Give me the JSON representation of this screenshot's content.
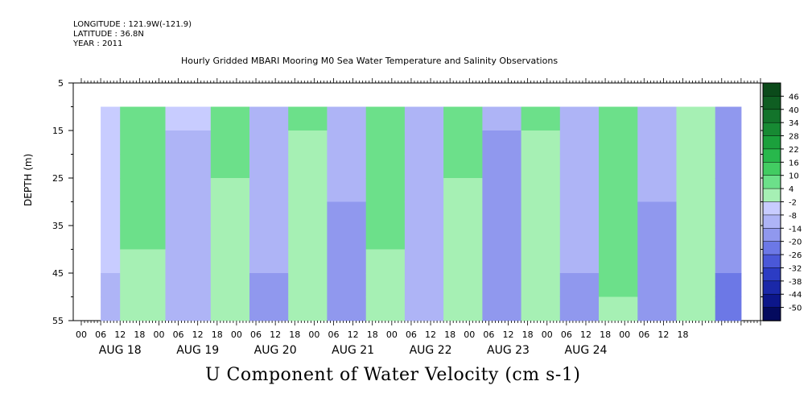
{
  "header": {
    "longitude": "LONGITUDE : 121.9W(-121.9)",
    "latitude": "LATITUDE : 36.8N",
    "year": "YEAR : 2011"
  },
  "chart_data": {
    "type": "heatmap",
    "title": "Hourly Gridded MBARI Mooring M0 Sea Water Temperature and Salinity Observations",
    "xlabel": "U Component of Water Velocity (cm s-1)",
    "ylabel": "DEPTH (m)",
    "y_ticks": [
      5,
      15,
      25,
      35,
      45,
      55
    ],
    "ylim": [
      5,
      55
    ],
    "y_inverted": true,
    "data_depth_range": [
      10,
      55
    ],
    "x_hour_labels": [
      "00",
      "06",
      "12",
      "18",
      "00",
      "06",
      "12",
      "18",
      "00",
      "06",
      "12",
      "18",
      "00",
      "06",
      "12",
      "18",
      "00",
      "06",
      "12",
      "18",
      "00",
      "06",
      "12",
      "18",
      "00",
      "06",
      "12",
      "18",
      "00",
      "06",
      "12",
      "18"
    ],
    "x_day_labels": [
      "AUG 18",
      "AUG 19",
      "AUG 20",
      "AUG 21",
      "AUG 22",
      "AUG 23",
      "AUG 24"
    ],
    "data_start_hour": 6,
    "data_end_hour": 204,
    "colorbar_levels": [
      46,
      40,
      34,
      28,
      22,
      16,
      10,
      4,
      -2,
      -8,
      -14,
      -20,
      -26,
      -32,
      -38,
      -44,
      -50
    ],
    "colorbar_colors": [
      "#0b4a1a",
      "#0f5e22",
      "#13742b",
      "#178a33",
      "#1ba03c",
      "#28b84c",
      "#42cc62",
      "#6ce08a",
      "#a6f0b4",
      "#c8ccff",
      "#aeb4f6",
      "#9098ee",
      "#6c78e6",
      "#4a58d8",
      "#2c3cc4",
      "#1a28a8",
      "#0c168a",
      "#040a5e"
    ],
    "u_velocity_pattern": [
      {
        "start_hour": 6,
        "end_hour": 12,
        "value": -4
      },
      {
        "start_hour": 12,
        "end_hour": 26,
        "value": 6
      },
      {
        "start_hour": 26,
        "end_hour": 40,
        "value": -8
      },
      {
        "start_hour": 40,
        "end_hour": 52,
        "value": 5
      },
      {
        "start_hour": 52,
        "end_hour": 64,
        "value": -10
      },
      {
        "start_hour": 64,
        "end_hour": 76,
        "value": 4
      },
      {
        "start_hour": 76,
        "end_hour": 88,
        "value": -12
      },
      {
        "start_hour": 88,
        "end_hour": 100,
        "value": 6
      },
      {
        "start_hour": 100,
        "end_hour": 112,
        "value": -9
      },
      {
        "start_hour": 112,
        "end_hour": 124,
        "value": 5
      },
      {
        "start_hour": 124,
        "end_hour": 136,
        "value": -14
      },
      {
        "start_hour": 136,
        "end_hour": 148,
        "value": 4
      },
      {
        "start_hour": 148,
        "end_hour": 160,
        "value": -10
      },
      {
        "start_hour": 160,
        "end_hour": 172,
        "value": 7
      },
      {
        "start_hour": 172,
        "end_hour": 184,
        "value": -12
      },
      {
        "start_hour": 184,
        "end_hour": 196,
        "value": 3
      },
      {
        "start_hour": 196,
        "end_hour": 204,
        "value": -16
      }
    ]
  }
}
